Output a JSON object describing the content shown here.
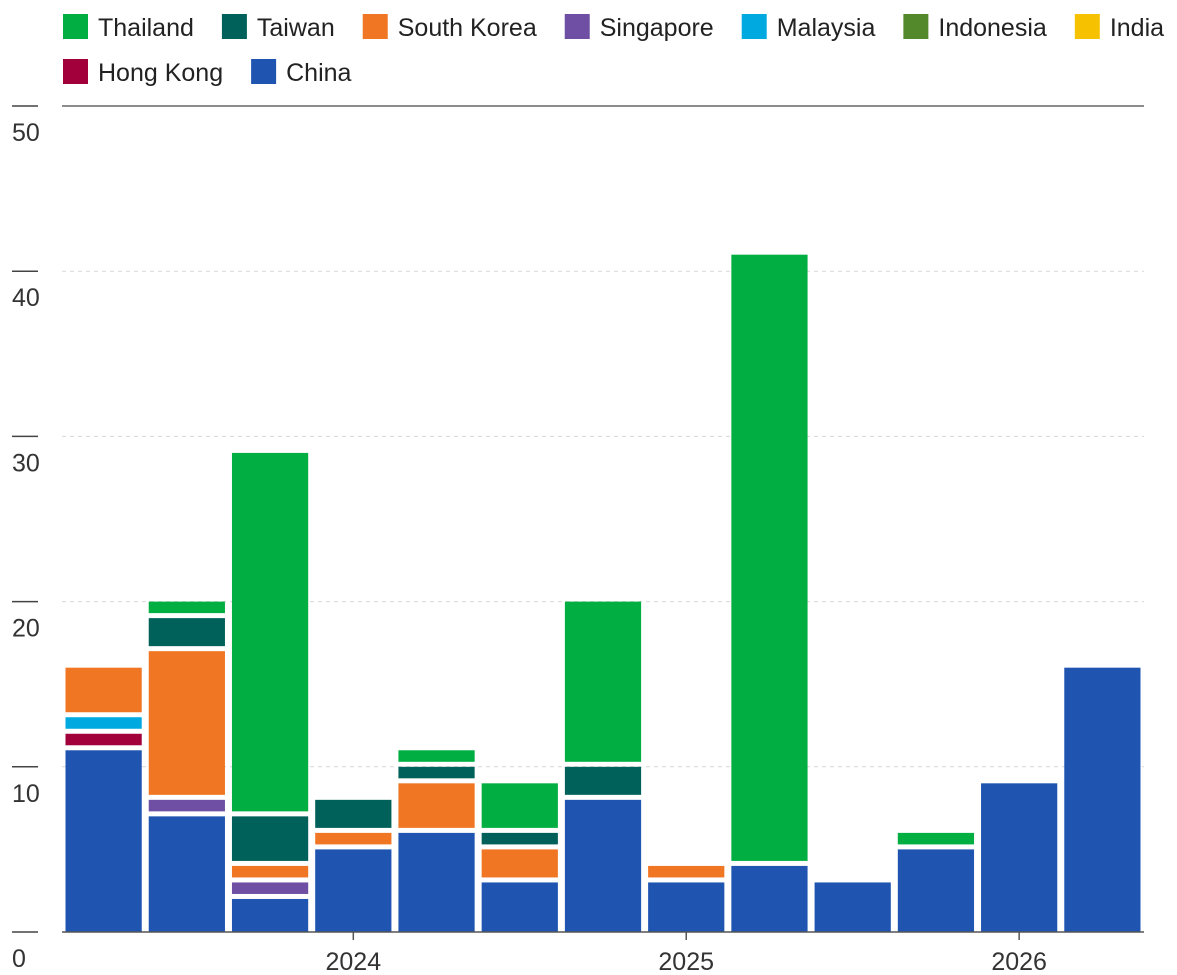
{
  "chart_data": {
    "type": "bar",
    "stacked": true,
    "title": "",
    "xlabel": "",
    "ylabel": "",
    "ylim": [
      0,
      50
    ],
    "yticks": [
      "0",
      "10",
      "20",
      "30",
      "40",
      "50"
    ],
    "xtick_labels": [
      {
        "label": "2024",
        "category": 3.5
      },
      {
        "label": "2025",
        "category": 7.5
      },
      {
        "label": "2026",
        "category": 11.5
      }
    ],
    "grid": true,
    "legend_position": "top",
    "legend": [
      {
        "name": "Thailand",
        "color": "#00ae42"
      },
      {
        "name": "Taiwan",
        "color": "#00615a"
      },
      {
        "name": "South Korea",
        "color": "#f07623"
      },
      {
        "name": "Singapore",
        "color": "#6e4fa3"
      },
      {
        "name": "Malaysia",
        "color": "#00a9e0"
      },
      {
        "name": "Indonesia",
        "color": "#54892b"
      },
      {
        "name": "India",
        "color": "#f6c200"
      },
      {
        "name": "Hong Kong",
        "color": "#a1003a"
      },
      {
        "name": "China",
        "color": "#1f55b0"
      }
    ],
    "stack_order": [
      "China",
      "Hong Kong",
      "India",
      "Indonesia",
      "Malaysia",
      "Singapore",
      "South Korea",
      "Taiwan",
      "Thailand"
    ],
    "category_count": 13,
    "series": [
      {
        "name": "China",
        "values": [
          11,
          7,
          2,
          5,
          6,
          3,
          8,
          3,
          4,
          3,
          5,
          9,
          16
        ]
      },
      {
        "name": "Hong Kong",
        "values": [
          1,
          0,
          0,
          0,
          0,
          0,
          0,
          0,
          0,
          0,
          0,
          0,
          0
        ]
      },
      {
        "name": "India",
        "values": [
          0,
          0,
          0,
          0,
          0,
          0,
          0,
          0,
          0,
          0,
          0,
          0,
          0
        ]
      },
      {
        "name": "Indonesia",
        "values": [
          0,
          0,
          0,
          0,
          0,
          0,
          0,
          0,
          0,
          0,
          0,
          0,
          0
        ]
      },
      {
        "name": "Malaysia",
        "values": [
          1,
          0,
          0,
          0,
          0,
          0,
          0,
          0,
          0,
          0,
          0,
          0,
          0
        ]
      },
      {
        "name": "Singapore",
        "values": [
          0,
          1,
          1,
          0,
          0,
          0,
          0,
          0,
          0,
          0,
          0,
          0,
          0
        ]
      },
      {
        "name": "South Korea",
        "values": [
          3,
          9,
          1,
          1,
          3,
          2,
          0,
          1,
          0,
          0,
          0,
          0,
          0
        ]
      },
      {
        "name": "Taiwan",
        "values": [
          0,
          2,
          3,
          2,
          1,
          1,
          2,
          0,
          0,
          0,
          0,
          0,
          0
        ]
      },
      {
        "name": "Thailand",
        "values": [
          0,
          1,
          22,
          0,
          1,
          3,
          10,
          0,
          37,
          0,
          1,
          0,
          0
        ]
      }
    ]
  }
}
